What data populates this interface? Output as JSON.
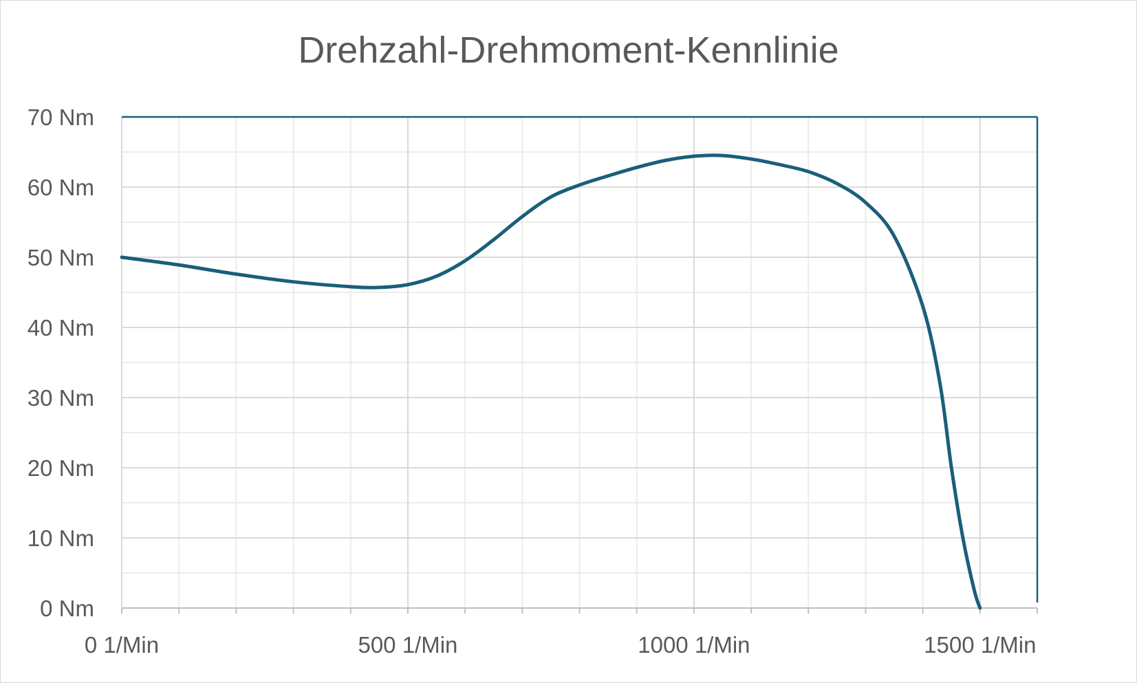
{
  "chart_data": {
    "type": "line",
    "title": "Drehzahl-Drehmoment-Kennlinie",
    "xlabel": "",
    "ylabel": "",
    "xlim": [
      0,
      1600
    ],
    "ylim": [
      0,
      70
    ],
    "x_ticks": [
      0,
      500,
      1000,
      1500
    ],
    "x_tick_labels": [
      "0 1/Min",
      "500 1/Min",
      "1000 1/Min",
      "1500 1/Min"
    ],
    "y_ticks": [
      0,
      10,
      20,
      30,
      40,
      50,
      60,
      70
    ],
    "y_tick_labels": [
      "0 Nm",
      "10 Nm",
      "20 Nm",
      "30 Nm",
      "40 Nm",
      "50 Nm",
      "60 Nm",
      "70 Nm"
    ],
    "grid": true,
    "legend": "none",
    "colors": {
      "line": "#1a5f7a",
      "grid": "#d9d9d9",
      "minor_grid": "#ececec",
      "axis": "#1a5f7a"
    },
    "series": [
      {
        "values_x": [
          0,
          100,
          200,
          300,
          400,
          450,
          500,
          550,
          600,
          650,
          700,
          750,
          800,
          850,
          900,
          950,
          1000,
          1050,
          1100,
          1150,
          1200,
          1250,
          1300,
          1350,
          1400,
          1430,
          1450,
          1470,
          1490,
          1500
        ],
        "values_y": [
          50,
          48.9,
          47.6,
          46.5,
          45.8,
          45.7,
          46.1,
          47.3,
          49.5,
          52.5,
          55.8,
          58.6,
          60.3,
          61.6,
          62.8,
          63.8,
          64.4,
          64.5,
          64.0,
          63.2,
          62.2,
          60.5,
          57.8,
          53.0,
          43.0,
          32.0,
          20.0,
          10.0,
          2.5,
          0
        ]
      }
    ]
  }
}
